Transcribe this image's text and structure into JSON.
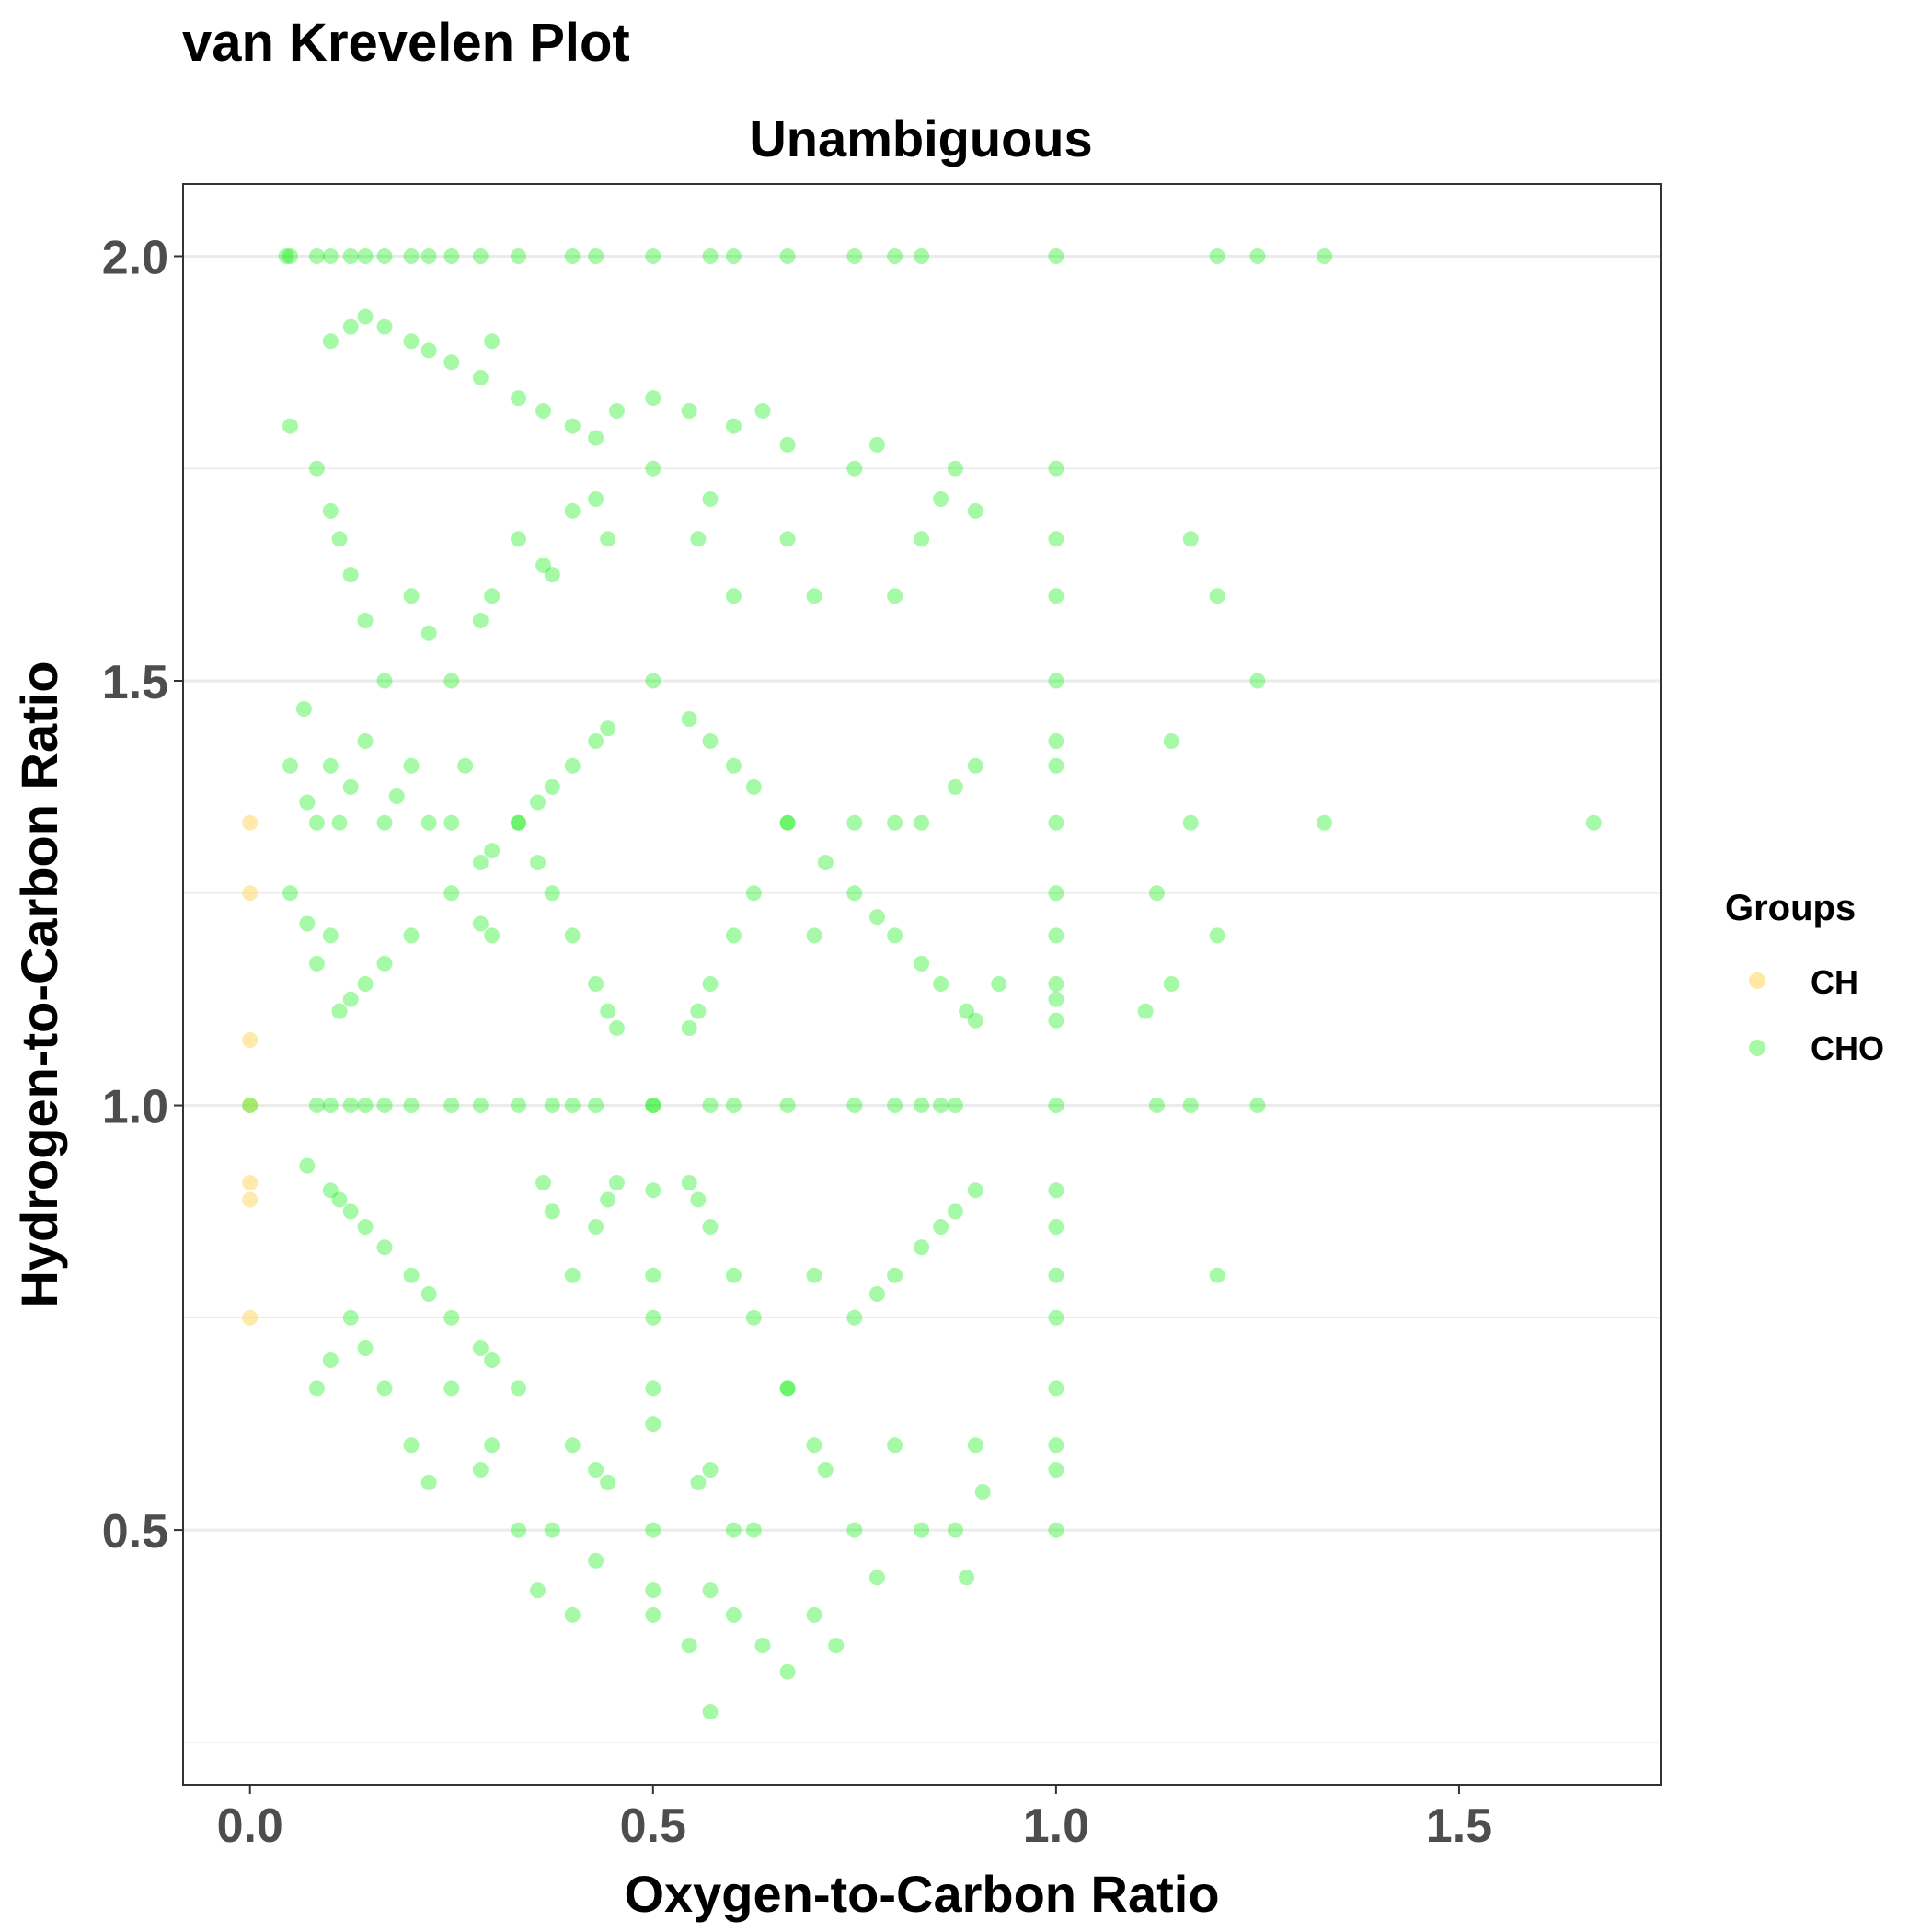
{
  "chart_data": {
    "type": "scatter",
    "title": "van Krevelen Plot",
    "subtitle": "Unambiguous",
    "xlabel": "Oxygen-to-Carbon Ratio",
    "ylabel": "Hydrogen-to-Carbon Ratio",
    "xlim": [
      -0.083,
      1.75
    ],
    "ylim": [
      0.2,
      2.085
    ],
    "x_ticks": [
      0.0,
      0.5,
      1.0,
      1.5
    ],
    "x_tick_labels": [
      "0.0",
      "0.5",
      "1.0",
      "1.5"
    ],
    "y_ticks": [
      0.5,
      1.0,
      1.5,
      2.0
    ],
    "y_tick_labels": [
      "0.5",
      "1.0",
      "1.5",
      "2.0"
    ],
    "y_minor_grid": [
      0.25,
      0.75,
      1.25,
      1.75
    ],
    "grid": "horizontal only",
    "legend": {
      "title": "Groups",
      "position": "right"
    },
    "colors": {
      "CH": "#ffd966",
      "CHO": "#00ee00"
    },
    "series": [
      {
        "name": "CH",
        "points": [
          [
            0,
            1.333
          ],
          [
            0,
            1.25
          ],
          [
            0,
            1.077
          ],
          [
            0,
            1.0
          ],
          [
            0,
            0.909
          ],
          [
            0,
            0.889
          ],
          [
            0,
            0.75
          ]
        ]
      },
      {
        "name": "CHO",
        "points": [
          [
            0.045,
            2.0
          ],
          [
            0.05,
            2.0
          ],
          [
            0.083,
            2.0
          ],
          [
            0.1,
            2.0
          ],
          [
            0.125,
            2.0
          ],
          [
            0.143,
            2.0
          ],
          [
            0.167,
            2.0
          ],
          [
            0.2,
            2.0
          ],
          [
            0.222,
            2.0
          ],
          [
            0.25,
            2.0
          ],
          [
            0.286,
            2.0
          ],
          [
            0.333,
            2.0
          ],
          [
            0.4,
            2.0
          ],
          [
            0.429,
            2.0
          ],
          [
            0.5,
            2.0
          ],
          [
            0.571,
            2.0
          ],
          [
            0.6,
            2.0
          ],
          [
            0.667,
            2.0
          ],
          [
            0.75,
            2.0
          ],
          [
            0.8,
            2.0
          ],
          [
            0.833,
            2.0
          ],
          [
            1.0,
            2.0
          ],
          [
            1.2,
            2.0
          ],
          [
            1.25,
            2.0
          ],
          [
            1.333,
            2.0
          ],
          [
            0.1,
            1.9
          ],
          [
            0.125,
            1.917
          ],
          [
            0.143,
            1.929
          ],
          [
            0.167,
            1.917
          ],
          [
            0.2,
            1.9
          ],
          [
            0.222,
            1.889
          ],
          [
            0.25,
            1.875
          ],
          [
            0.286,
            1.857
          ],
          [
            0.3,
            1.9
          ],
          [
            0.333,
            1.833
          ],
          [
            0.364,
            1.818
          ],
          [
            0.4,
            1.8
          ],
          [
            0.429,
            1.786
          ],
          [
            0.455,
            1.818
          ],
          [
            0.5,
            1.833
          ],
          [
            0.545,
            1.818
          ],
          [
            0.6,
            1.8
          ],
          [
            0.636,
            1.818
          ],
          [
            0.667,
            1.778
          ],
          [
            0.778,
            1.778
          ],
          [
            0.05,
            1.8
          ],
          [
            0.083,
            1.75
          ],
          [
            0.1,
            1.7
          ],
          [
            0.111,
            1.667
          ],
          [
            0.125,
            1.625
          ],
          [
            0.143,
            1.571
          ],
          [
            0.167,
            1.5
          ],
          [
            0.2,
            1.6
          ],
          [
            0.222,
            1.556
          ],
          [
            0.25,
            1.5
          ],
          [
            0.286,
            1.571
          ],
          [
            0.3,
            1.6
          ],
          [
            0.333,
            1.667
          ],
          [
            0.364,
            1.636
          ],
          [
            0.375,
            1.625
          ],
          [
            0.4,
            1.7
          ],
          [
            0.429,
            1.714
          ],
          [
            0.444,
            1.667
          ],
          [
            0.5,
            1.75
          ],
          [
            0.556,
            1.667
          ],
          [
            0.571,
            1.714
          ],
          [
            0.6,
            1.6
          ],
          [
            0.667,
            1.667
          ],
          [
            0.7,
            1.6
          ],
          [
            0.75,
            1.75
          ],
          [
            0.8,
            1.6
          ],
          [
            0.833,
            1.667
          ],
          [
            0.857,
            1.714
          ],
          [
            0.875,
            1.75
          ],
          [
            0.9,
            1.7
          ],
          [
            1.0,
            1.75
          ],
          [
            1.0,
            1.667
          ],
          [
            1.0,
            1.6
          ],
          [
            1.0,
            1.5
          ],
          [
            1.0,
            1.429
          ],
          [
            1.0,
            1.4
          ],
          [
            1.0,
            1.333
          ],
          [
            1.0,
            1.25
          ],
          [
            1.0,
            1.2
          ],
          [
            1.0,
            1.143
          ],
          [
            1.0,
            1.125
          ],
          [
            1.0,
            1.1
          ],
          [
            1.0,
            1.0
          ],
          [
            0.05,
            1.4
          ],
          [
            0.067,
            1.467
          ],
          [
            0.071,
            1.357
          ],
          [
            0.083,
            1.333
          ],
          [
            0.1,
            1.4
          ],
          [
            0.111,
            1.333
          ],
          [
            0.125,
            1.375
          ],
          [
            0.143,
            1.429
          ],
          [
            0.167,
            1.333
          ],
          [
            0.182,
            1.364
          ],
          [
            0.2,
            1.4
          ],
          [
            0.222,
            1.333
          ],
          [
            0.25,
            1.333
          ],
          [
            0.267,
            1.4
          ],
          [
            0.286,
            1.286
          ],
          [
            0.3,
            1.3
          ],
          [
            0.333,
            1.333
          ],
          [
            0.357,
            1.357
          ],
          [
            0.375,
            1.375
          ],
          [
            0.4,
            1.4
          ],
          [
            0.429,
            1.429
          ],
          [
            0.444,
            1.444
          ],
          [
            0.5,
            1.5
          ],
          [
            0.545,
            1.455
          ],
          [
            0.571,
            1.429
          ],
          [
            0.6,
            1.4
          ],
          [
            0.625,
            1.375
          ],
          [
            0.667,
            1.333
          ],
          [
            0.714,
            1.286
          ],
          [
            0.75,
            1.333
          ],
          [
            0.8,
            1.333
          ],
          [
            0.833,
            1.333
          ],
          [
            0.875,
            1.375
          ],
          [
            0.9,
            1.4
          ],
          [
            1.125,
            1.25
          ],
          [
            1.143,
            1.429
          ],
          [
            1.167,
            1.333
          ],
          [
            1.167,
            1.667
          ],
          [
            1.2,
            1.6
          ],
          [
            1.25,
            1.5
          ],
          [
            1.333,
            1.333
          ],
          [
            1.667,
            1.333
          ],
          [
            0.05,
            1.25
          ],
          [
            0.071,
            1.214
          ],
          [
            0.083,
            1.167
          ],
          [
            0.1,
            1.2
          ],
          [
            0.111,
            1.111
          ],
          [
            0.125,
            1.125
          ],
          [
            0.143,
            1.143
          ],
          [
            0.167,
            1.167
          ],
          [
            0.2,
            1.2
          ],
          [
            0.25,
            1.25
          ],
          [
            0.286,
            1.214
          ],
          [
            0.3,
            1.2
          ],
          [
            0.333,
            1.333
          ],
          [
            0.357,
            1.286
          ],
          [
            0.375,
            1.25
          ],
          [
            0.4,
            1.2
          ],
          [
            0.429,
            1.143
          ],
          [
            0.444,
            1.111
          ],
          [
            0.455,
            1.091
          ],
          [
            0.5,
            1.0
          ],
          [
            0.545,
            1.091
          ],
          [
            0.556,
            1.111
          ],
          [
            0.571,
            1.143
          ],
          [
            0.6,
            1.2
          ],
          [
            0.625,
            1.25
          ],
          [
            0.667,
            1.333
          ],
          [
            0.7,
            1.2
          ],
          [
            0.75,
            1.25
          ],
          [
            0.778,
            1.222
          ],
          [
            0.8,
            1.2
          ],
          [
            0.833,
            1.167
          ],
          [
            0.857,
            1.143
          ],
          [
            0.889,
            1.111
          ],
          [
            0.9,
            1.1
          ],
          [
            0.929,
            1.143
          ],
          [
            1.111,
            1.111
          ],
          [
            1.143,
            1.143
          ],
          [
            1.2,
            1.2
          ],
          [
            0.0,
            1.0
          ],
          [
            0.083,
            1.0
          ],
          [
            0.1,
            1.0
          ],
          [
            0.125,
            1.0
          ],
          [
            0.143,
            1.0
          ],
          [
            0.167,
            1.0
          ],
          [
            0.2,
            1.0
          ],
          [
            0.25,
            1.0
          ],
          [
            0.286,
            1.0
          ],
          [
            0.333,
            1.0
          ],
          [
            0.375,
            1.0
          ],
          [
            0.4,
            1.0
          ],
          [
            0.429,
            1.0
          ],
          [
            0.5,
            1.0
          ],
          [
            0.571,
            1.0
          ],
          [
            0.6,
            1.0
          ],
          [
            0.667,
            1.0
          ],
          [
            0.75,
            1.0
          ],
          [
            0.8,
            1.0
          ],
          [
            0.833,
            1.0
          ],
          [
            0.857,
            1.0
          ],
          [
            0.875,
            1.0
          ],
          [
            1.125,
            1.0
          ],
          [
            1.167,
            1.0
          ],
          [
            1.25,
            1.0
          ],
          [
            0.071,
            0.929
          ],
          [
            0.1,
            0.9
          ],
          [
            0.111,
            0.889
          ],
          [
            0.125,
            0.875
          ],
          [
            0.143,
            0.857
          ],
          [
            0.167,
            0.833
          ],
          [
            0.2,
            0.8
          ],
          [
            0.222,
            0.778
          ],
          [
            0.25,
            0.75
          ],
          [
            0.286,
            0.714
          ],
          [
            0.3,
            0.7
          ],
          [
            0.333,
            0.667
          ],
          [
            0.364,
            0.909
          ],
          [
            0.375,
            0.875
          ],
          [
            0.4,
            0.8
          ],
          [
            0.429,
            0.857
          ],
          [
            0.444,
            0.889
          ],
          [
            0.455,
            0.909
          ],
          [
            0.5,
            0.9
          ],
          [
            0.5,
            0.8
          ],
          [
            0.5,
            0.75
          ],
          [
            0.5,
            0.667
          ],
          [
            0.545,
            0.909
          ],
          [
            0.556,
            0.889
          ],
          [
            0.571,
            0.857
          ],
          [
            0.6,
            0.8
          ],
          [
            0.625,
            0.75
          ],
          [
            0.667,
            0.667
          ],
          [
            0.7,
            0.8
          ],
          [
            0.75,
            0.75
          ],
          [
            0.778,
            0.778
          ],
          [
            0.8,
            0.8
          ],
          [
            0.833,
            0.833
          ],
          [
            0.857,
            0.857
          ],
          [
            0.875,
            0.875
          ],
          [
            0.9,
            0.9
          ],
          [
            1.0,
            0.9
          ],
          [
            1.0,
            0.857
          ],
          [
            1.0,
            0.8
          ],
          [
            1.0,
            0.75
          ],
          [
            1.0,
            0.667
          ],
          [
            1.0,
            0.6
          ],
          [
            1.0,
            0.571
          ],
          [
            1.0,
            0.5
          ],
          [
            1.2,
            0.8
          ],
          [
            0.083,
            0.667
          ],
          [
            0.1,
            0.7
          ],
          [
            0.125,
            0.75
          ],
          [
            0.143,
            0.714
          ],
          [
            0.167,
            0.667
          ],
          [
            0.2,
            0.6
          ],
          [
            0.222,
            0.556
          ],
          [
            0.25,
            0.667
          ],
          [
            0.286,
            0.571
          ],
          [
            0.3,
            0.6
          ],
          [
            0.333,
            0.5
          ],
          [
            0.375,
            0.5
          ],
          [
            0.4,
            0.6
          ],
          [
            0.429,
            0.571
          ],
          [
            0.444,
            0.556
          ],
          [
            0.5,
            0.5
          ],
          [
            0.5,
            0.625
          ],
          [
            0.556,
            0.556
          ],
          [
            0.571,
            0.571
          ],
          [
            0.6,
            0.5
          ],
          [
            0.625,
            0.5
          ],
          [
            0.667,
            0.667
          ],
          [
            0.7,
            0.6
          ],
          [
            0.714,
            0.571
          ],
          [
            0.75,
            0.5
          ],
          [
            0.8,
            0.6
          ],
          [
            0.833,
            0.5
          ],
          [
            0.875,
            0.5
          ],
          [
            0.9,
            0.6
          ],
          [
            0.909,
            0.545
          ],
          [
            0.357,
            0.429
          ],
          [
            0.4,
            0.4
          ],
          [
            0.429,
            0.464
          ],
          [
            0.5,
            0.429
          ],
          [
            0.5,
            0.4
          ],
          [
            0.545,
            0.364
          ],
          [
            0.571,
            0.429
          ],
          [
            0.6,
            0.4
          ],
          [
            0.636,
            0.364
          ],
          [
            0.667,
            0.333
          ],
          [
            0.7,
            0.4
          ],
          [
            0.727,
            0.364
          ],
          [
            0.778,
            0.444
          ],
          [
            0.889,
            0.444
          ],
          [
            0.571,
            0.286
          ]
        ]
      }
    ]
  }
}
